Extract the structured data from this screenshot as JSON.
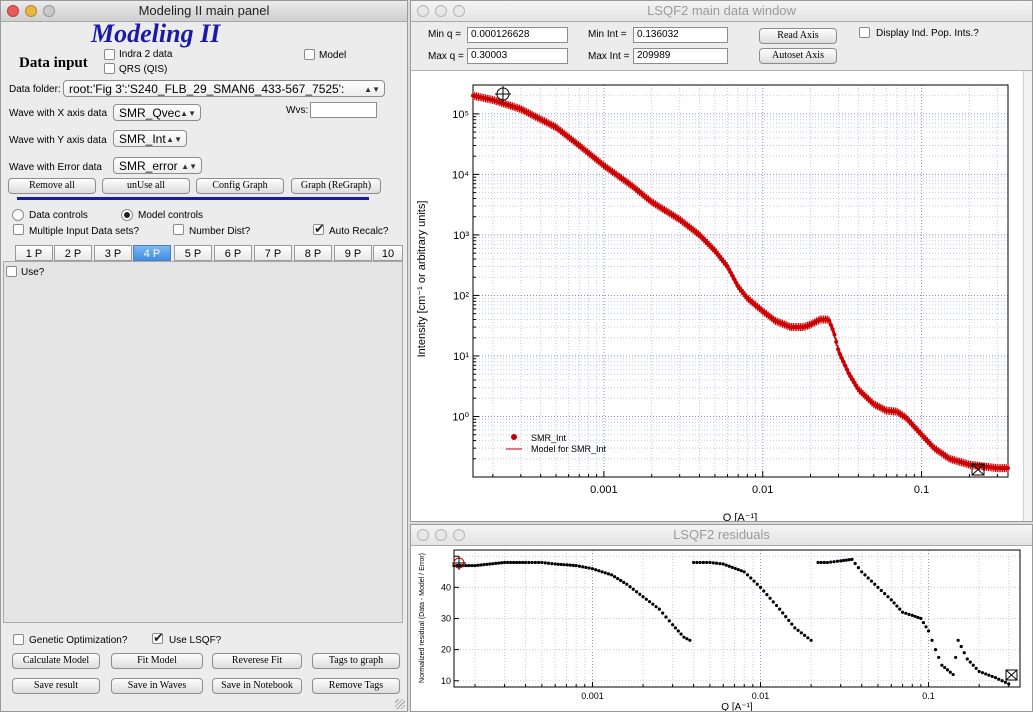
{
  "panel": {
    "title": "Modeling II main panel",
    "app_title": "Modeling II",
    "data_input_label": "Data input",
    "indra_label": "Indra 2 data",
    "qrs_label": "QRS (QIS)",
    "model_label": "Model",
    "data_folder_label": "Data folder:",
    "data_folder_value": "root:'Fig 3':'S240_FLB_29_SMAN6_433-567_7525':",
    "wvs_label": "Wvs:",
    "wvs_value": "",
    "x_wave_label": "Wave with X axis data",
    "x_wave_value": "SMR_Qvec",
    "y_wave_label": "Wave with Y axis data",
    "y_wave_value": "SMR_Int",
    "err_wave_label": "Wave with Error data",
    "err_wave_value": "SMR_error",
    "buttons_row1": [
      "Remove all",
      "unUse all",
      "Config Graph",
      "Graph (ReGraph)"
    ],
    "data_controls_label": "Data controls",
    "model_controls_label": "Model controls",
    "multiple_input_label": "Multiple Input Data sets?",
    "number_dist_label": "Number Dist?",
    "auto_recalc_label": "Auto Recalc?",
    "tabs": [
      "1 P",
      "2 P",
      "3 P",
      "4 P",
      "5 P",
      "6 P",
      "7 P",
      "8 P",
      "9 P",
      "10"
    ],
    "active_tab": "4 P",
    "use_label": "Use?",
    "genetic_label": "Genetic Optimization?",
    "lsqf_label": "Use LSQF?",
    "bottom_buttons_row1": [
      "Calculate Model",
      "Fit Model",
      "Reverese Fit",
      "Tags to graph"
    ],
    "bottom_buttons_row2": [
      "Save result",
      "Save in Waves",
      "Save in Notebook",
      "Remove Tags"
    ],
    "accent_color": "#1a1aa6"
  },
  "main_window": {
    "title": "LSQF2 main data window",
    "min_q_label": "Min q =",
    "min_q": "0.000126628",
    "max_q_label": "Max q =",
    "max_q": "0.30003",
    "min_int_label": "Min Int =",
    "min_int": "0.136032",
    "max_int_label": "Max Int =",
    "max_int": "209989",
    "read_axis": "Read Axis",
    "autoset_axis": "Autoset Axis",
    "display_ind_label": "Display Ind. Pop. Ints.?"
  },
  "residuals_window": {
    "title": "LSQF2 residuals"
  },
  "chart_data": [
    {
      "type": "scatter",
      "xlabel": "Q [A⁻¹]",
      "ylabel": "Intensity [cm⁻¹ or arbitrary units]",
      "xscale": "log",
      "yscale": "log",
      "xlim": [
        0.00015,
        0.35
      ],
      "ylim": [
        0.1,
        300000
      ],
      "x_ticks": [
        "0.001",
        "0.01",
        "0.1"
      ],
      "y_ticks": [
        "10⁰",
        "10¹",
        "10²",
        "10³",
        "10⁴",
        "10⁵"
      ],
      "legend": [
        "SMR_Int",
        "Model for SMR_Int"
      ],
      "legend_position": "bottom-left",
      "grid": true,
      "series": [
        {
          "name": "SMR_Int",
          "color": "#cc0000",
          "x": [
            0.00015,
            0.0002,
            0.0003,
            0.0005,
            0.0007,
            0.001,
            0.0015,
            0.002,
            0.003,
            0.004,
            0.005,
            0.006,
            0.007,
            0.008,
            0.01,
            0.012,
            0.015,
            0.018,
            0.02,
            0.023,
            0.026,
            0.028,
            0.03,
            0.035,
            0.04,
            0.05,
            0.06,
            0.07,
            0.08,
            0.1,
            0.12,
            0.15,
            0.2,
            0.3
          ],
          "y": [
            200000,
            170000,
            120000,
            60000,
            30000,
            14000,
            6500,
            3500,
            1800,
            1000,
            550,
            300,
            140,
            90,
            55,
            38,
            30,
            30,
            33,
            40,
            40,
            25,
            12,
            5,
            2.8,
            1.6,
            1.25,
            1.2,
            0.95,
            0.5,
            0.3,
            0.2,
            0.16,
            0.14
          ]
        }
      ]
    },
    {
      "type": "scatter",
      "ylabel": "Normalized residual (Data - Model / Error)",
      "xlabel": "Q [A⁻¹]",
      "xscale": "log",
      "xlim": [
        0.00015,
        0.35
      ],
      "ylim": [
        8,
        52
      ],
      "x_ticks": [
        "0.001",
        "0.01",
        "0.1"
      ],
      "y_ticks": [
        "10",
        "20",
        "30",
        "40"
      ],
      "grid": true,
      "series": [
        {
          "name": "",
          "color": "#000000",
          "x": [
            0.00015,
            0.0002,
            0.0003,
            0.0004,
            0.0005,
            0.0006,
            0.0008,
            0.001,
            0.0013,
            0.0016,
            0.002,
            0.0025,
            0.003,
            0.0035,
            0.0038,
            0.004,
            0.005,
            0.006,
            0.008,
            0.01,
            0.013,
            0.016,
            0.02,
            0.022,
            0.025,
            0.03,
            0.035,
            0.04,
            0.05,
            0.06,
            0.07,
            0.08,
            0.09,
            0.1,
            0.11,
            0.12,
            0.14,
            0.15,
            0.17,
            0.2,
            0.25,
            0.3
          ],
          "y": [
            47,
            47,
            48,
            48,
            48,
            47.5,
            47,
            46,
            44,
            41,
            37,
            33,
            28,
            24,
            23,
            48,
            48,
            47.5,
            45,
            40,
            33,
            27,
            23,
            48,
            48,
            48.5,
            49,
            45,
            40,
            36,
            32,
            31,
            30,
            26,
            20,
            15,
            12,
            23,
            17,
            13,
            11,
            9
          ]
        }
      ]
    }
  ]
}
